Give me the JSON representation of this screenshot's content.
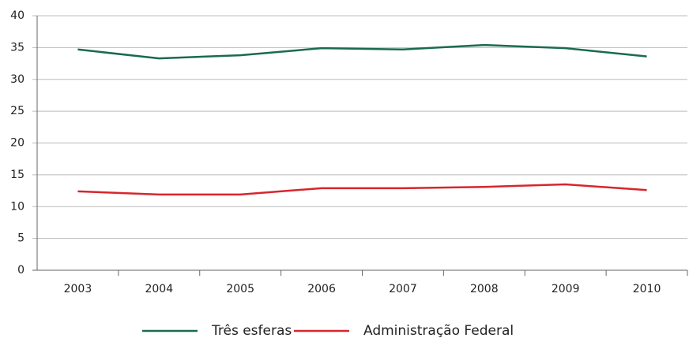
{
  "chart_data": {
    "type": "line",
    "categories": [
      "2003",
      "2004",
      "2005",
      "2006",
      "2007",
      "2008",
      "2009",
      "2010"
    ],
    "series": [
      {
        "name": "Três esferas",
        "color": "#1a6b4e",
        "values": [
          34.7,
          33.3,
          33.8,
          34.9,
          34.7,
          35.4,
          34.9,
          33.6
        ]
      },
      {
        "name": "Administração Federal",
        "color": "#d7262c",
        "values": [
          12.4,
          11.9,
          11.9,
          12.9,
          12.9,
          13.1,
          13.5,
          12.6
        ]
      }
    ],
    "ylim": [
      0,
      40
    ],
    "yticks": [
      0,
      5,
      10,
      15,
      20,
      25,
      30,
      35,
      40
    ],
    "grid": true,
    "legend": "bottom"
  }
}
